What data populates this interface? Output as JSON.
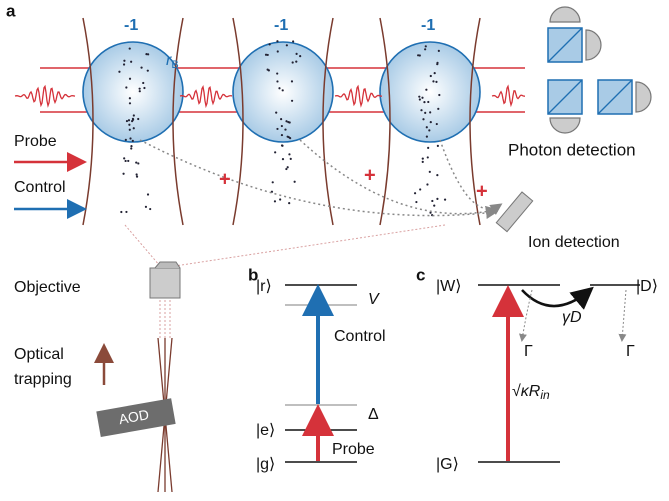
{
  "panel_a": {
    "label": "a",
    "charges": [
      "-1",
      "-1",
      "-1"
    ],
    "radius": {
      "symbol": "r",
      "subscript": "B"
    },
    "probe": "Probe",
    "control": "Control",
    "photon_detection": "Photon detection",
    "ion_detection": "Ion detection",
    "ions": [
      "+",
      "+",
      "+"
    ],
    "objective": "Objective",
    "optical_trapping": [
      "Optical",
      "trapping"
    ],
    "aod": "AOD"
  },
  "panel_b": {
    "label": "b",
    "states": [
      "|r⟩",
      "|e⟩",
      "|g⟩"
    ],
    "shift": "V",
    "control": "Control",
    "detuning": "Δ",
    "probe": "Probe"
  },
  "panel_c": {
    "label": "c",
    "states": [
      "|W⟩",
      "|D⟩",
      "|G⟩"
    ],
    "rate": "γD",
    "decay": [
      "Γ",
      "Γ"
    ],
    "pump": {
      "main": "√κR",
      "subscript": "in"
    }
  }
}
